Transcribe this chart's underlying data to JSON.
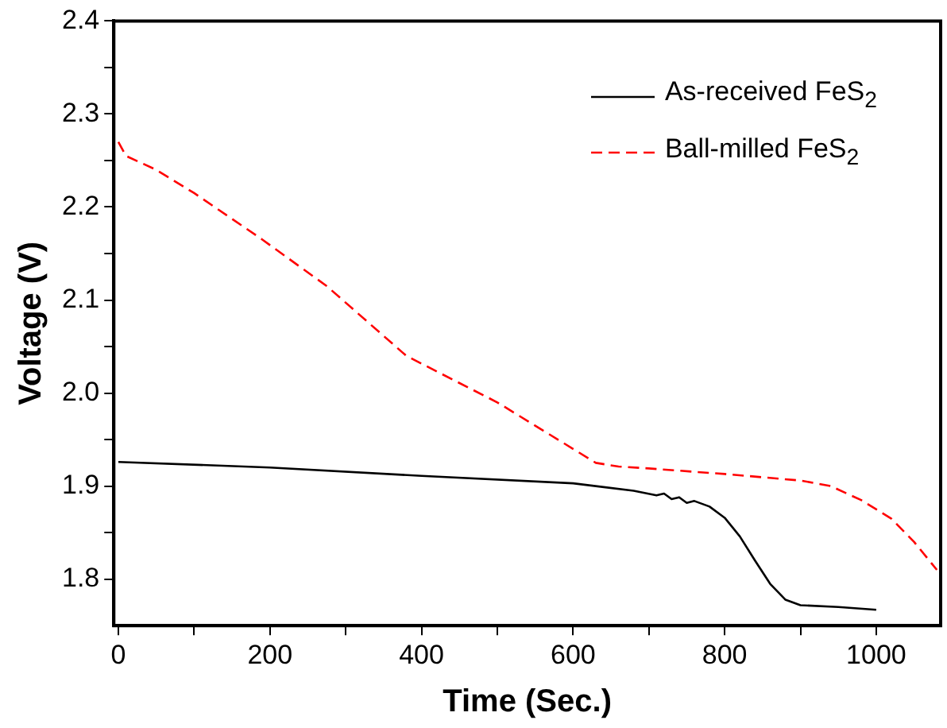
{
  "chart_data": {
    "type": "line",
    "xlabel": "Time (Sec.)",
    "ylabel": "Voltage (V)",
    "xlim": [
      -6,
      1085
    ],
    "xticks": [
      0,
      {
        "value": 100,
        "label": null
      },
      200,
      {
        "value": 300,
        "label": null
      },
      400,
      {
        "value": 500,
        "label": null
      },
      600,
      {
        "value": 700,
        "label": null
      },
      800,
      {
        "value": 900,
        "label": null
      },
      1000
    ],
    "ylim": [
      1.75,
      2.4
    ],
    "yticks": [
      1.8,
      {
        "value": 1.85,
        "label": null
      },
      1.9,
      {
        "value": 1.95,
        "label": null
      },
      {
        "value": 2,
        "label": "2.0"
      },
      {
        "value": 2.05,
        "label": null
      },
      2.1,
      {
        "value": 2.15,
        "label": null
      },
      2.2,
      {
        "value": 2.25,
        "label": null
      },
      2.3,
      {
        "value": 2.35,
        "label": null
      },
      2.4
    ],
    "legend": "top right",
    "grid": false,
    "marker": "none",
    "series": [
      {
        "name": "As-received FeS$_{2}$",
        "color": "#000000",
        "line_style": "solid",
        "x": [
          0,
          200,
          400,
          600,
          680,
          710,
          720,
          730,
          740,
          750,
          760,
          780,
          800,
          820,
          840,
          860,
          880,
          900,
          950,
          1000
        ],
        "values": [
          1.926,
          1.92,
          1.911,
          1.903,
          1.895,
          1.89,
          1.892,
          1.886,
          1.888,
          1.882,
          1.884,
          1.878,
          1.866,
          1.846,
          1.82,
          1.795,
          1.778,
          1.772,
          1.77,
          1.767
        ]
      },
      {
        "name": "Ball-milled FeS$_{2}$",
        "color": "#ff0000",
        "line_style": "dashed",
        "x": [
          0,
          10,
          50,
          100,
          190,
          275,
          380,
          500,
          550,
          600,
          630,
          660,
          700,
          800,
          900,
          940,
          980,
          1020,
          1050,
          1080
        ],
        "values": [
          2.27,
          2.255,
          2.24,
          2.215,
          2.165,
          2.115,
          2.04,
          1.99,
          1.965,
          1.94,
          1.925,
          1.921,
          1.919,
          1.913,
          1.906,
          1.9,
          1.885,
          1.865,
          1.84,
          1.81
        ]
      }
    ]
  }
}
